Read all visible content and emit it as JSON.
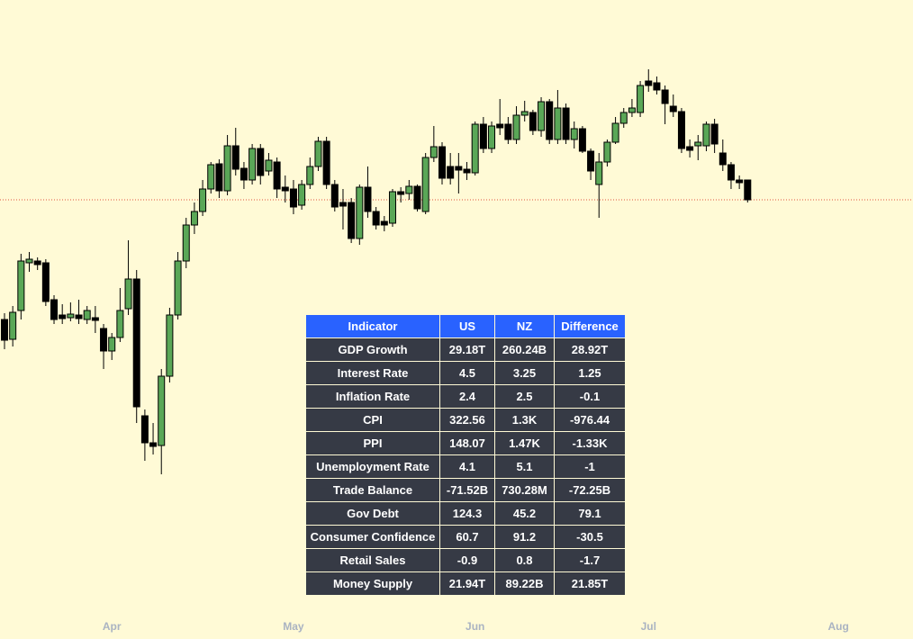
{
  "chart_data": {
    "type": "candlestick",
    "up_color": "#5aa757",
    "down_color": "#000000",
    "wick_color": "#000000",
    "last_price_line_color": "#e0533c",
    "ylim": [
      0,
      700
    ],
    "categories": [
      null,
      null,
      null,
      null,
      null,
      null,
      null,
      null,
      null,
      null,
      null,
      null,
      null,
      "Apr",
      null,
      null,
      null,
      null,
      null,
      null,
      null,
      null,
      null,
      null,
      null,
      null,
      null,
      null,
      null,
      null,
      null,
      null,
      null,
      null,
      null,
      "May",
      null,
      null,
      null,
      null,
      null,
      null,
      null,
      null,
      null,
      null,
      null,
      null,
      null,
      null,
      null,
      null,
      null,
      null,
      null,
      null,
      null,
      "Jun",
      null,
      null,
      null,
      null,
      null,
      null,
      null,
      null,
      null,
      null,
      null,
      null,
      null,
      null,
      null,
      null,
      null,
      null,
      null,
      null,
      "Jul",
      null,
      null,
      null,
      null,
      null,
      null,
      null,
      null,
      null,
      null,
      null,
      null,
      null,
      null,
      null,
      null,
      null,
      null,
      null,
      null,
      null,
      null,
      "Aug"
    ],
    "ohlc": [
      [
        345,
        352,
        312,
        322
      ],
      [
        323,
        360,
        315,
        353
      ],
      [
        355,
        418,
        345,
        410
      ],
      [
        408,
        420,
        398,
        412
      ],
      [
        410,
        414,
        400,
        406
      ],
      [
        408,
        412,
        360,
        365
      ],
      [
        367,
        372,
        340,
        345
      ],
      [
        350,
        362,
        340,
        346
      ],
      [
        347,
        364,
        343,
        351
      ],
      [
        350,
        367,
        340,
        346
      ],
      [
        345,
        360,
        340,
        355
      ],
      [
        347,
        360,
        330,
        344
      ],
      [
        335,
        340,
        290,
        310
      ],
      [
        310,
        330,
        300,
        325
      ],
      [
        325,
        380,
        320,
        355
      ],
      [
        357,
        433,
        350,
        390
      ],
      [
        390,
        400,
        230,
        248
      ],
      [
        238,
        245,
        188,
        208
      ],
      [
        208,
        230,
        195,
        204
      ],
      [
        205,
        290,
        173,
        282
      ],
      [
        282,
        358,
        275,
        350
      ],
      [
        350,
        420,
        345,
        410
      ],
      [
        410,
        458,
        402,
        450
      ],
      [
        450,
        475,
        440,
        465
      ],
      [
        465,
        500,
        460,
        490
      ],
      [
        490,
        520,
        485,
        517
      ],
      [
        518,
        523,
        480,
        488
      ],
      [
        488,
        550,
        483,
        538
      ],
      [
        538,
        558,
        505,
        512
      ],
      [
        513,
        520,
        490,
        500
      ],
      [
        500,
        540,
        495,
        535
      ],
      [
        535,
        540,
        495,
        505
      ],
      [
        510,
        530,
        505,
        522
      ],
      [
        520,
        525,
        480,
        490
      ],
      [
        492,
        505,
        475,
        488
      ],
      [
        490,
        500,
        462,
        470
      ],
      [
        472,
        500,
        467,
        495
      ],
      [
        495,
        525,
        490,
        515
      ],
      [
        515,
        548,
        510,
        543
      ],
      [
        543,
        548,
        490,
        495
      ],
      [
        495,
        500,
        465,
        470
      ],
      [
        475,
        490,
        445,
        471
      ],
      [
        475,
        480,
        430,
        435
      ],
      [
        435,
        495,
        428,
        492
      ],
      [
        492,
        515,
        458,
        465
      ],
      [
        465,
        470,
        445,
        450
      ],
      [
        454,
        460,
        443,
        450
      ],
      [
        452,
        490,
        448,
        487
      ],
      [
        487,
        492,
        475,
        484
      ],
      [
        485,
        500,
        478,
        493
      ],
      [
        493,
        495,
        465,
        468
      ],
      [
        465,
        530,
        462,
        525
      ],
      [
        525,
        560,
        520,
        537
      ],
      [
        537,
        542,
        495,
        502
      ],
      [
        515,
        530,
        495,
        502
      ],
      [
        515,
        530,
        485,
        511
      ],
      [
        512,
        520,
        500,
        508
      ],
      [
        508,
        565,
        505,
        562
      ],
      [
        562,
        570,
        530,
        535
      ],
      [
        535,
        565,
        530,
        560
      ],
      [
        562,
        590,
        550,
        558
      ],
      [
        562,
        570,
        540,
        545
      ],
      [
        545,
        582,
        540,
        572
      ],
      [
        572,
        588,
        565,
        576
      ],
      [
        575,
        578,
        550,
        555
      ],
      [
        555,
        592,
        548,
        587
      ],
      [
        587,
        590,
        540,
        545
      ],
      [
        545,
        600,
        540,
        580
      ],
      [
        580,
        585,
        540,
        545
      ],
      [
        545,
        565,
        535,
        557
      ],
      [
        557,
        560,
        530,
        532
      ],
      [
        532,
        535,
        500,
        510
      ],
      [
        495,
        530,
        458,
        520
      ],
      [
        520,
        545,
        515,
        542
      ],
      [
        542,
        570,
        540,
        563
      ],
      [
        563,
        580,
        558,
        575
      ],
      [
        575,
        590,
        570,
        580
      ],
      [
        575,
        610,
        570,
        605
      ],
      [
        610,
        623,
        598,
        605
      ],
      [
        608,
        615,
        595,
        600
      ],
      [
        600,
        605,
        562,
        585
      ],
      [
        582,
        595,
        570,
        576
      ],
      [
        576,
        580,
        530,
        535
      ],
      [
        537,
        545,
        525,
        533
      ],
      [
        538,
        550,
        522,
        542
      ],
      [
        538,
        565,
        532,
        562
      ],
      [
        562,
        568,
        530,
        540
      ],
      [
        530,
        545,
        510,
        517
      ],
      [
        517,
        520,
        490,
        500
      ],
      [
        500,
        505,
        490,
        497
      ],
      [
        500,
        500,
        475,
        478
      ],
      null,
      null,
      null,
      null,
      null,
      null,
      null,
      null,
      null,
      null,
      null
    ]
  },
  "table": {
    "header": [
      "Indicator",
      "US",
      "NZ",
      "Difference"
    ],
    "rows": [
      [
        "GDP Growth",
        "29.18T",
        "260.24B",
        "28.92T"
      ],
      [
        "Interest Rate",
        "4.5",
        "3.25",
        "1.25"
      ],
      [
        "Inflation Rate",
        "2.4",
        "2.5",
        "-0.1"
      ],
      [
        "CPI",
        "322.56",
        "1.3K",
        "-976.44"
      ],
      [
        "PPI",
        "148.07",
        "1.47K",
        "-1.33K"
      ],
      [
        "Unemployment Rate",
        "4.1",
        "5.1",
        "-1"
      ],
      [
        "Trade Balance",
        "-71.52B",
        "730.28M",
        "-72.25B"
      ],
      [
        "Gov Debt",
        "124.3",
        "45.2",
        "79.1"
      ],
      [
        "Consumer Confidence",
        "60.7",
        "91.2",
        "-30.5"
      ],
      [
        "Retail Sales",
        "-0.9",
        "0.8",
        "-1.7"
      ],
      [
        "Money Supply",
        "21.94T",
        "89.22B",
        "21.85T"
      ]
    ]
  }
}
